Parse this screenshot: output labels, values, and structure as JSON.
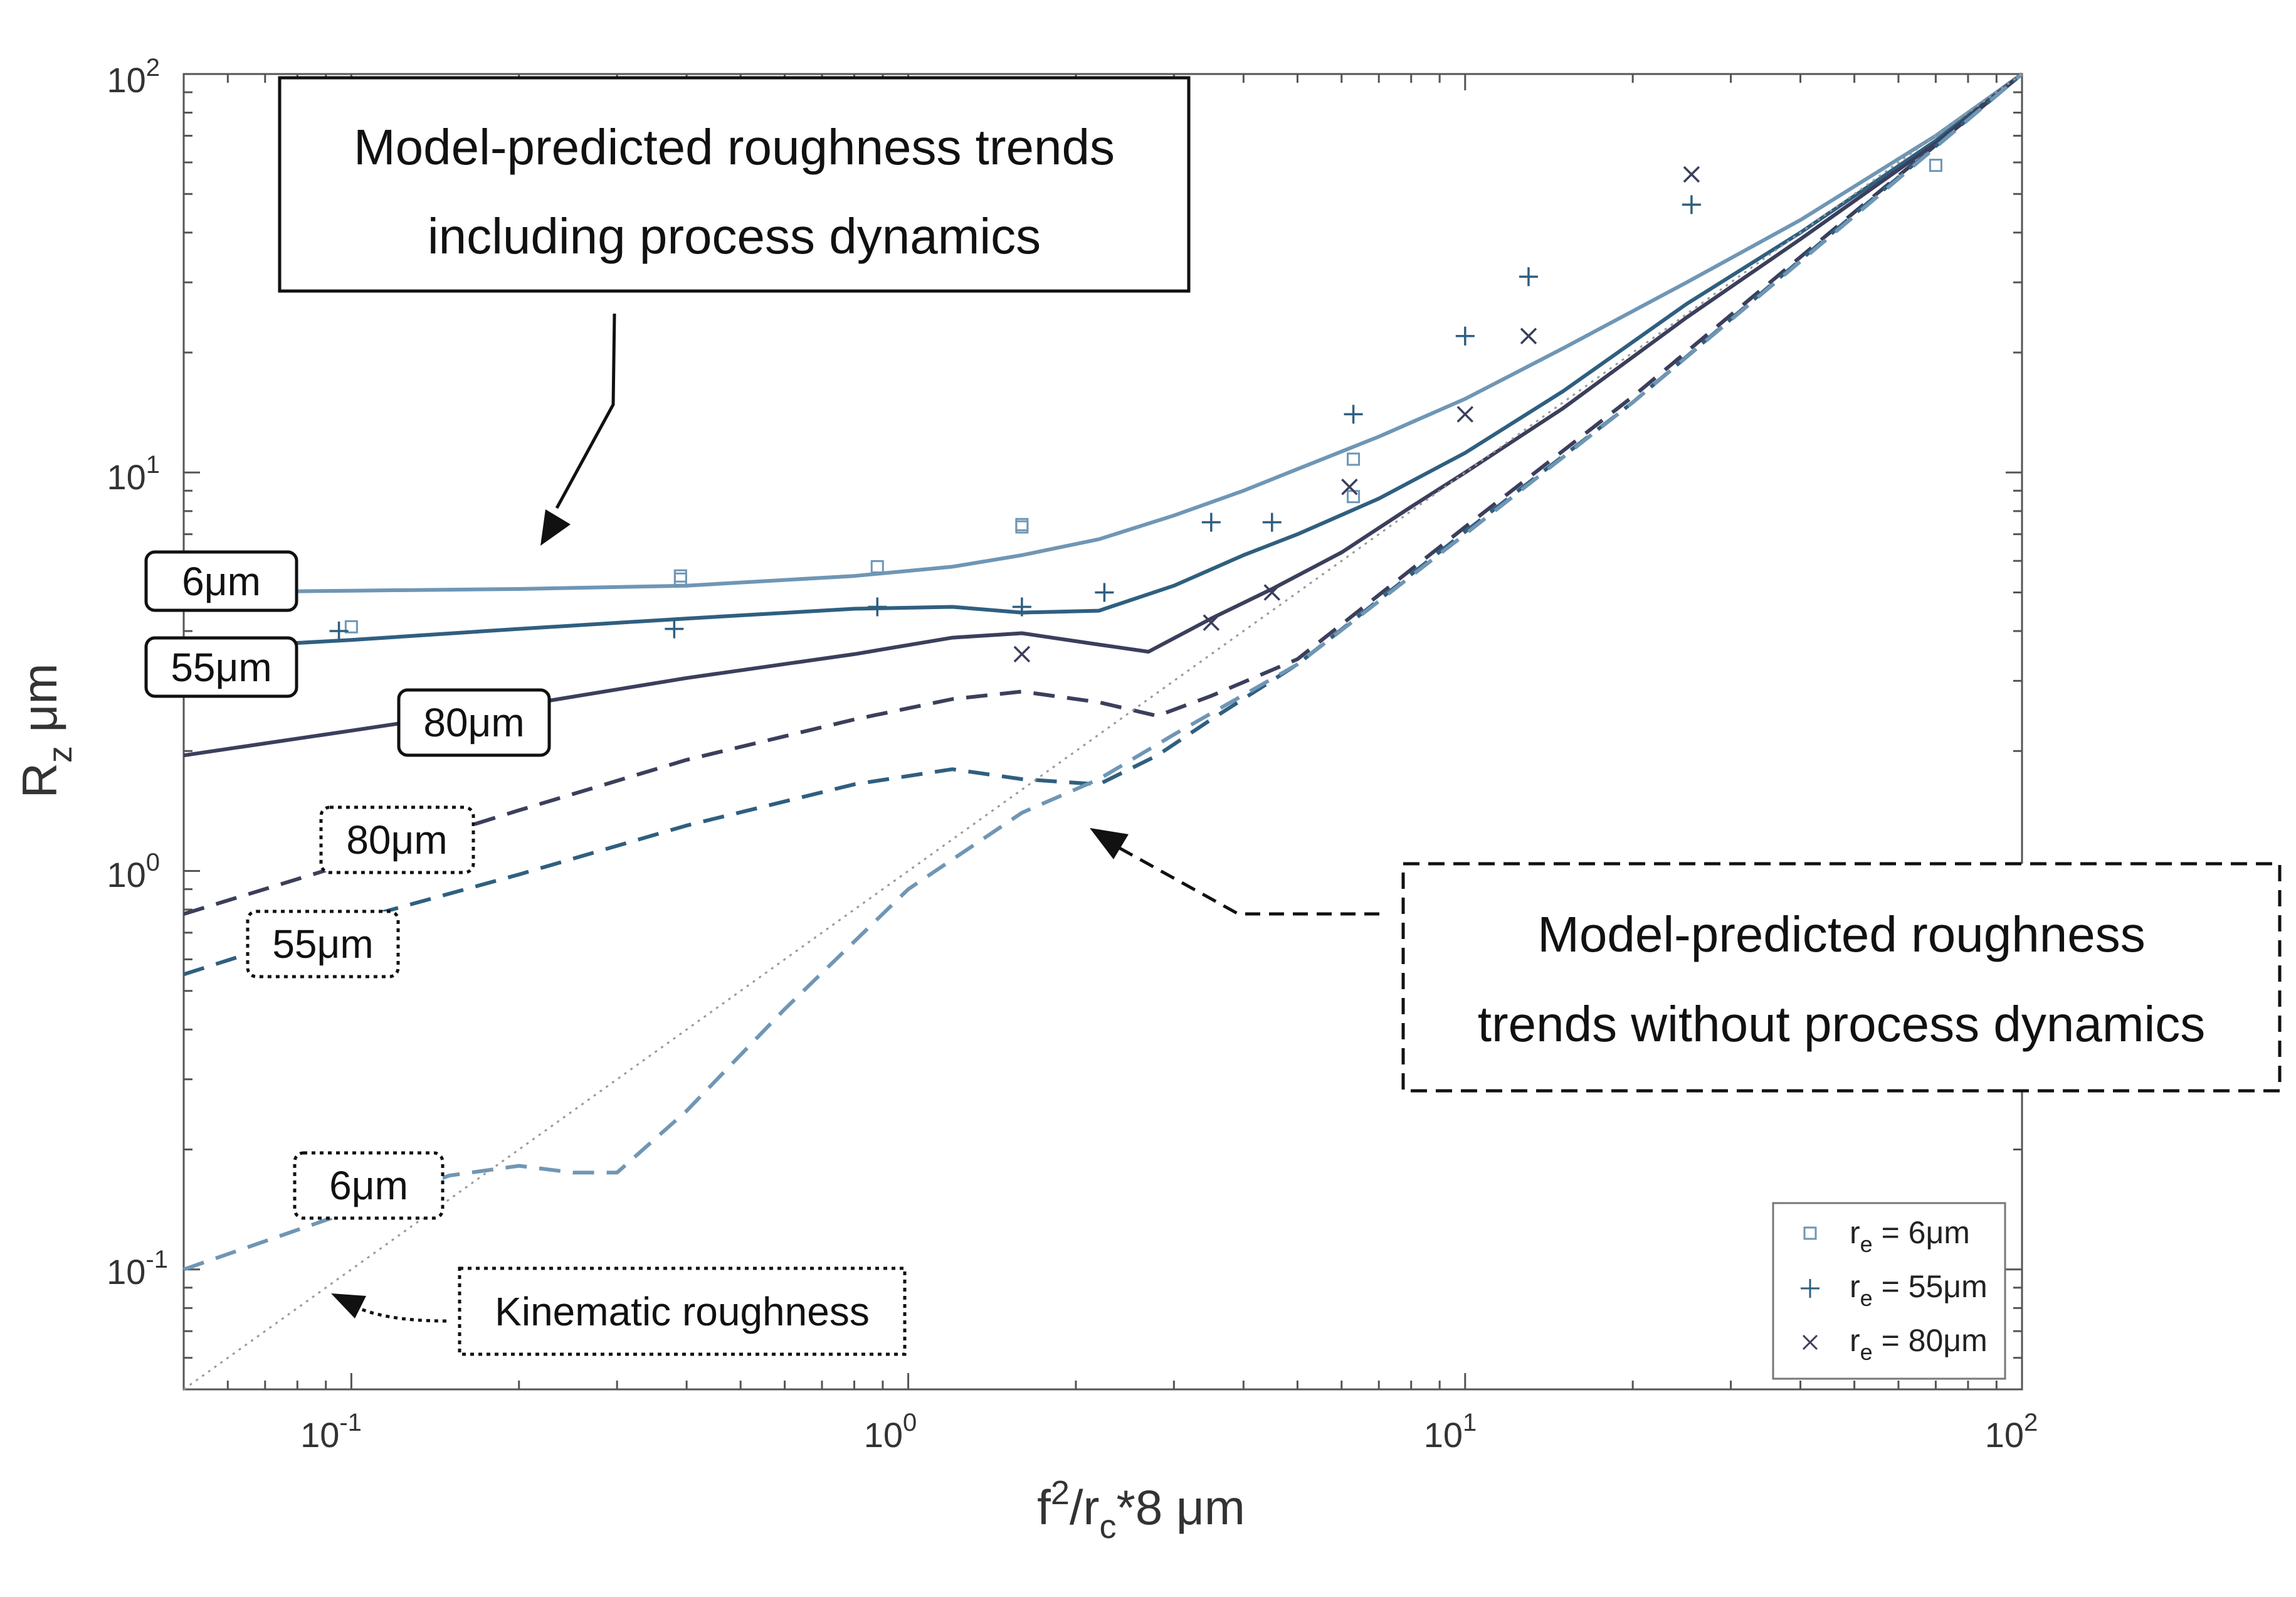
{
  "chart_data": {
    "type": "line",
    "x_scale": "log",
    "y_scale": "log",
    "xlim": [
      0.05,
      100
    ],
    "ylim": [
      0.05,
      100
    ],
    "xlabel": {
      "main": "f",
      "sup": "2",
      "mid": "/r",
      "sub": "c",
      "tail": "*8 μm"
    },
    "ylabel": {
      "main": "R",
      "sub": "z",
      "tail": " μm"
    },
    "x_ticks": [
      {
        "base": "10",
        "exp": "-1",
        "value": 0.1
      },
      {
        "base": "10",
        "exp": "0",
        "value": 1
      },
      {
        "base": "10",
        "exp": "1",
        "value": 10
      },
      {
        "base": "10",
        "exp": "2",
        "value": 100
      }
    ],
    "y_ticks": [
      {
        "base": "10",
        "exp": "-1",
        "value": 0.1
      },
      {
        "base": "10",
        "exp": "0",
        "value": 1
      },
      {
        "base": "10",
        "exp": "1",
        "value": 10
      },
      {
        "base": "10",
        "exp": "2",
        "value": 100
      }
    ],
    "colors": {
      "re6": "#6f96b5",
      "re55": "#2f5f80",
      "re80": "#3b3f5c",
      "kinematic": "#999999",
      "axis": "#555555"
    },
    "series": [
      {
        "name": "6μm with dynamics",
        "style": "solid",
        "color": "#6f96b5",
        "x": [
          0.05,
          0.1,
          0.2,
          0.4,
          0.8,
          1.2,
          1.6,
          2.2,
          3,
          4,
          5,
          7,
          10,
          15,
          25,
          40,
          70,
          100
        ],
        "y": [
          5.0,
          5.05,
          5.1,
          5.2,
          5.5,
          5.8,
          6.2,
          6.8,
          7.8,
          9.0,
          10.2,
          12.3,
          15.3,
          20.5,
          30.0,
          43.0,
          70.0,
          100.0
        ]
      },
      {
        "name": "55μm with dynamics",
        "style": "solid",
        "color": "#2f5f80",
        "x": [
          0.05,
          0.1,
          0.2,
          0.4,
          0.8,
          1.2,
          1.6,
          2.2,
          3,
          4,
          5,
          7,
          10,
          15,
          25,
          40,
          70,
          100
        ],
        "y": [
          3.6,
          3.8,
          4.05,
          4.3,
          4.55,
          4.6,
          4.45,
          4.5,
          5.2,
          6.2,
          7.0,
          8.6,
          11.2,
          16.0,
          26.5,
          40.0,
          68.0,
          100.0
        ]
      },
      {
        "name": "80μm with dynamics",
        "style": "solid",
        "color": "#3b3f5c",
        "x": [
          0.05,
          0.1,
          0.2,
          0.4,
          0.8,
          1.2,
          1.6,
          2.2,
          2.7,
          3.5,
          4.5,
          6,
          8,
          10,
          15,
          25,
          40,
          70,
          100
        ],
        "y": [
          1.95,
          2.25,
          2.6,
          3.05,
          3.5,
          3.85,
          3.95,
          3.7,
          3.55,
          4.3,
          5.1,
          6.3,
          8.2,
          10.0,
          14.5,
          24.5,
          38.5,
          67.0,
          100.0
        ]
      },
      {
        "name": "80μm without dynamics",
        "style": "dashed",
        "color": "#3b3f5c",
        "x": [
          0.05,
          0.1,
          0.2,
          0.4,
          0.8,
          1.2,
          1.6,
          2.2,
          2.8,
          3.5,
          5,
          10,
          20,
          50,
          100
        ],
        "y": [
          0.78,
          1.05,
          1.42,
          1.9,
          2.4,
          2.7,
          2.82,
          2.65,
          2.45,
          2.75,
          3.4,
          7.3,
          15.5,
          45.0,
          100.0
        ]
      },
      {
        "name": "55μm without dynamics",
        "style": "dashed",
        "color": "#2f5f80",
        "x": [
          0.05,
          0.1,
          0.2,
          0.4,
          0.8,
          1.2,
          1.6,
          2.2,
          2.8,
          3.5,
          5,
          10,
          20,
          50,
          100
        ],
        "y": [
          0.55,
          0.75,
          0.98,
          1.3,
          1.65,
          1.8,
          1.7,
          1.65,
          1.95,
          2.4,
          3.3,
          7.1,
          15.0,
          44.5,
          100.0
        ]
      },
      {
        "name": "6μm without dynamics",
        "style": "dashed",
        "color": "#6f96b5",
        "x": [
          0.05,
          0.1,
          0.15,
          0.2,
          0.25,
          0.3,
          0.4,
          0.6,
          1,
          1.6,
          2.2,
          3,
          5,
          10,
          20,
          50,
          100
        ],
        "y": [
          0.1,
          0.14,
          0.172,
          0.182,
          0.175,
          0.175,
          0.25,
          0.45,
          0.9,
          1.4,
          1.7,
          2.2,
          3.3,
          7.0,
          15.0,
          44.0,
          100.0
        ]
      },
      {
        "name": "Kinematic roughness",
        "style": "dotted",
        "color": "#999999",
        "x": [
          0.05,
          100
        ],
        "y": [
          0.05,
          100
        ]
      }
    ],
    "scatter": [
      {
        "name": "r_e = 6μm",
        "marker": "square",
        "color": "#6f96b5",
        "x": [
          0.1,
          0.39,
          0.39,
          0.88,
          1.6,
          1.6,
          6.3,
          6.3,
          70
        ],
        "y": [
          4.1,
          5.4,
          5.5,
          5.8,
          7.3,
          7.4,
          10.8,
          8.7,
          59
        ]
      },
      {
        "name": "r_e = 55μm",
        "marker": "plus",
        "color": "#2f5f80",
        "x": [
          0.095,
          0.38,
          0.88,
          1.6,
          2.25,
          3.5,
          4.5,
          6.3,
          10,
          13,
          25.5
        ],
        "y": [
          4.0,
          4.05,
          4.6,
          4.6,
          5.0,
          7.5,
          7.5,
          14.0,
          22.0,
          31.0,
          47.0
        ]
      },
      {
        "name": "r_e = 80μm",
        "marker": "cross",
        "color": "#3b3f5c",
        "x": [
          1.6,
          3.5,
          4.5,
          6.2,
          10,
          13,
          25.5
        ],
        "y": [
          3.5,
          4.2,
          5.0,
          9.2,
          14.0,
          22.0,
          56.0
        ]
      }
    ],
    "legend": {
      "placement": "bottom-right",
      "entries": [
        {
          "marker": "square",
          "sym": "r",
          "sub": "e",
          "rest": " = 6μm"
        },
        {
          "marker": "plus",
          "sym": "r",
          "sub": "e",
          "rest": " = 55μm"
        },
        {
          "marker": "cross",
          "sym": "r",
          "sub": "e",
          "rest": " = 80μm"
        }
      ]
    },
    "annotations": {
      "with_dynamics": {
        "line1": "Model-predicted roughness trends",
        "line2": "including process dynamics"
      },
      "without_dynamics": {
        "line1": "Model-predicted roughness",
        "line2": "trends without process dynamics"
      },
      "kinematic": "Kinematic roughness",
      "solid_labels": [
        "6μm",
        "55μm",
        "80μm"
      ],
      "dashed_labels": [
        "80μm",
        "55μm",
        "6μm"
      ]
    }
  }
}
